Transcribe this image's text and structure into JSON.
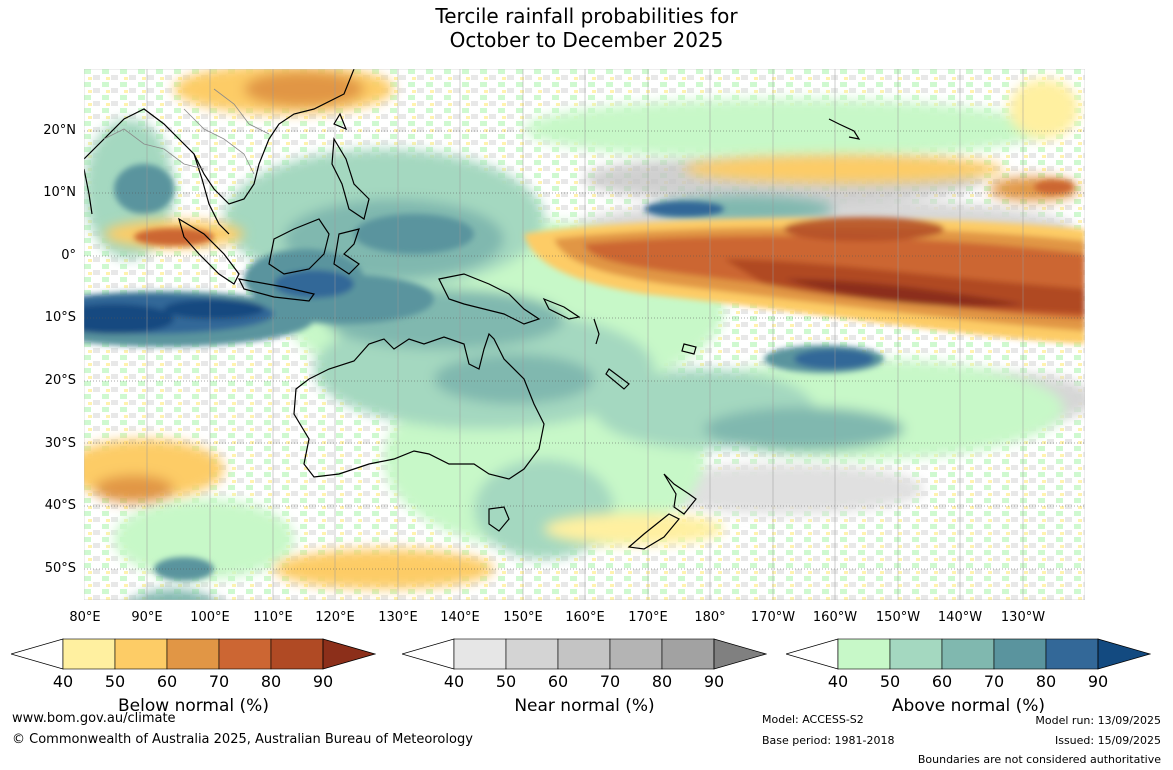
{
  "title": {
    "line1": "Tercile rainfall probabilities for",
    "line2": "October to December 2025"
  },
  "lat_labels": [
    "20°N",
    "10°N",
    "0°",
    "10°S",
    "20°S",
    "30°S",
    "40°S",
    "50°S"
  ],
  "lon_labels": [
    "80°E",
    "90°E",
    "100°E",
    "110°E",
    "120°E",
    "130°E",
    "140°E",
    "150°E",
    "160°E",
    "170°E",
    "180°",
    "170°W",
    "160°W",
    "150°W",
    "140°W",
    "130°W"
  ],
  "legends": [
    {
      "title": "Below normal (%)",
      "ticks": [
        "40",
        "50",
        "60",
        "70",
        "80",
        "90"
      ],
      "colors": [
        "#fff0a0",
        "#fdcc66",
        "#e19645",
        "#cc6633",
        "#b04a24",
        "#8c2f1a"
      ]
    },
    {
      "title": "Near normal (%)",
      "ticks": [
        "40",
        "50",
        "60",
        "70",
        "80",
        "90"
      ],
      "colors": [
        "#e6e6e6",
        "#d4d4d4",
        "#c4c4c4",
        "#b4b4b4",
        "#a2a2a2",
        "#808080"
      ]
    },
    {
      "title": "Above normal (%)",
      "ticks": [
        "40",
        "50",
        "60",
        "70",
        "80",
        "90"
      ],
      "colors": [
        "#c7f8c8",
        "#a4d8c0",
        "#80b8af",
        "#5a949e",
        "#336898",
        "#134a80"
      ]
    }
  ],
  "footer": {
    "website": "www.bom.gov.au/climate",
    "copyright": "© Commonwealth of Australia 2025, Australian Bureau of Meteorology",
    "model": "Model: ACCESS-S2",
    "base_period": "Base period: 1981-2018",
    "model_run": "Model run: 13/09/2025",
    "issued": "Issued: 15/09/2025",
    "disclaimer": "Boundaries are not considered authoritative"
  }
}
